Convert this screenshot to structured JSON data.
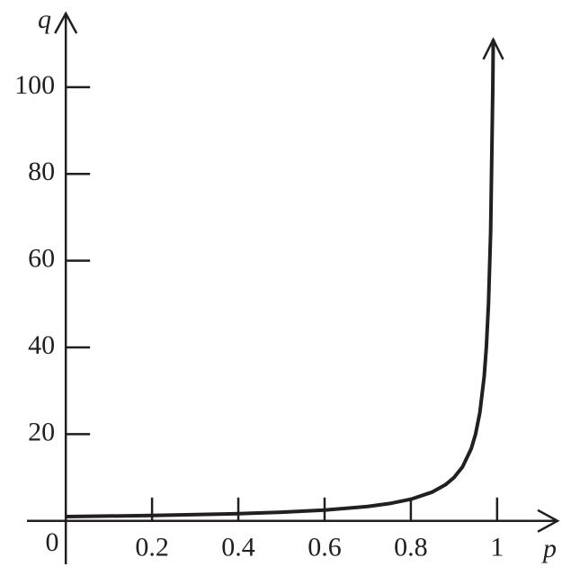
{
  "chart_data": {
    "type": "line",
    "x_label": "p",
    "y_label": "q",
    "origin_label": "0",
    "x": [
      0,
      0.2,
      0.4,
      0.5,
      0.6,
      0.7,
      0.75,
      0.8,
      0.85,
      0.88,
      0.9,
      0.92,
      0.94,
      0.95,
      0.96,
      0.97,
      0.975,
      0.98,
      0.985,
      0.99,
      0.991
    ],
    "series": [
      {
        "color": "#231f20",
        "values": [
          1,
          1.25,
          1.67,
          2,
          2.5,
          3.33,
          4,
          5,
          6.67,
          8.33,
          10,
          12.5,
          16.67,
          20,
          25,
          33.33,
          40,
          50,
          66.67,
          100,
          111
        ]
      }
    ],
    "xlim": [
      -0.09,
      1.14
    ],
    "ylim": [
      -10,
      117
    ],
    "xticks": [
      0.2,
      0.4,
      0.6,
      0.8,
      1
    ],
    "yticks": [
      20,
      40,
      60,
      80,
      100
    ]
  }
}
